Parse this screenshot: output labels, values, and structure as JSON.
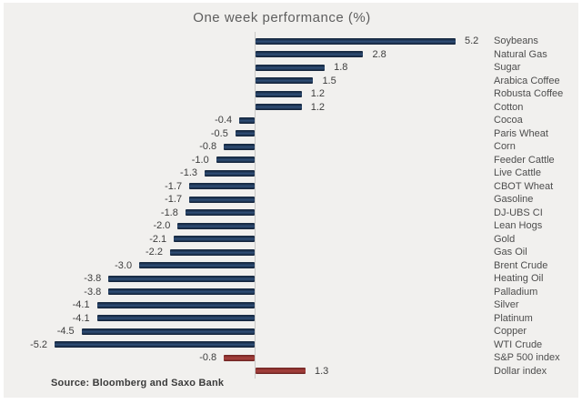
{
  "chart_data": {
    "type": "bar",
    "orientation": "horizontal",
    "title": "One week performance (%)",
    "source_label": "Source: Bloomberg and Saxo Bank",
    "value_format": "one-decimal",
    "grid": false,
    "legend": false,
    "xlim": [
      -5.5,
      5.5
    ],
    "colors": {
      "commodity_bar": "#1d3350",
      "index_bar": "#9c3836",
      "panel_background": "#f1f0ee",
      "frame": "#ffffff",
      "axis_line": "#c9c9c7",
      "title_text": "#5e5e5e",
      "label_text": "#4d4d4d"
    },
    "items": [
      {
        "label": "Soybeans",
        "value": 5.2,
        "color": "navy"
      },
      {
        "label": "Natural Gas",
        "value": 2.8,
        "color": "navy"
      },
      {
        "label": "Sugar",
        "value": 1.8,
        "color": "navy"
      },
      {
        "label": "Arabica Coffee",
        "value": 1.5,
        "color": "navy"
      },
      {
        "label": "Robusta Coffee",
        "value": 1.2,
        "color": "navy"
      },
      {
        "label": "Cotton",
        "value": 1.2,
        "color": "navy"
      },
      {
        "label": "Cocoa",
        "value": -0.4,
        "color": "navy"
      },
      {
        "label": "Paris Wheat",
        "value": -0.5,
        "color": "navy"
      },
      {
        "label": "Corn",
        "value": -0.8,
        "color": "navy"
      },
      {
        "label": "Feeder Cattle",
        "value": -1.0,
        "color": "navy"
      },
      {
        "label": "Live Cattle",
        "value": -1.3,
        "color": "navy"
      },
      {
        "label": "CBOT Wheat",
        "value": -1.7,
        "color": "navy"
      },
      {
        "label": "Gasoline",
        "value": -1.7,
        "color": "navy"
      },
      {
        "label": "DJ-UBS CI",
        "value": -1.8,
        "color": "navy"
      },
      {
        "label": "Lean Hogs",
        "value": -2.0,
        "color": "navy"
      },
      {
        "label": "Gold",
        "value": -2.1,
        "color": "navy"
      },
      {
        "label": "Gas Oil",
        "value": -2.2,
        "color": "navy"
      },
      {
        "label": "Brent Crude",
        "value": -3.0,
        "color": "navy"
      },
      {
        "label": "Heating Oil",
        "value": -3.8,
        "color": "navy"
      },
      {
        "label": "Palladium",
        "value": -3.8,
        "color": "navy"
      },
      {
        "label": "Silver",
        "value": -4.1,
        "color": "navy"
      },
      {
        "label": "Platinum",
        "value": -4.1,
        "color": "navy"
      },
      {
        "label": "Copper",
        "value": -4.5,
        "color": "navy"
      },
      {
        "label": "WTI Crude",
        "value": -5.2,
        "color": "navy"
      },
      {
        "label": "S&P 500 index",
        "value": -0.8,
        "color": "red"
      },
      {
        "label": "Dollar index",
        "value": 1.3,
        "color": "red"
      }
    ]
  }
}
